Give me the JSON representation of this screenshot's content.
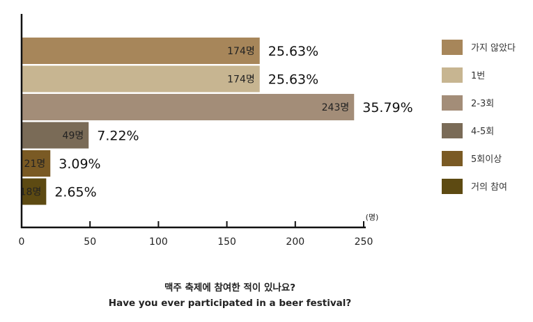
{
  "chart_data": {
    "type": "bar",
    "orientation": "horizontal",
    "categories": [
      "가지 않았다",
      "1번",
      "2-3회",
      "4-5회",
      "5회이상",
      "거의 참여"
    ],
    "values": [
      174,
      174,
      243,
      49,
      21,
      18
    ],
    "value_labels": [
      "174명",
      "174명",
      "243명",
      "49명",
      "21명",
      "18명"
    ],
    "percent_labels": [
      "25.63%",
      "25.63%",
      "35.79%",
      "7.22%",
      "3.09%",
      "2.65%"
    ],
    "colors": [
      "#a7865a",
      "#c7b591",
      "#a38d78",
      "#7a6b57",
      "#7a5a24",
      "#5d4a12"
    ],
    "xlim": [
      0,
      250
    ],
    "xticks": [
      "0",
      "50",
      "100",
      "150",
      "200",
      "250"
    ],
    "xunit": "(명)",
    "legend_position": "right",
    "grid": false
  },
  "caption": {
    "korean": "맥주 축제에 참여한 적이 있나요?",
    "english": "Have you ever participated in a beer festival?"
  }
}
